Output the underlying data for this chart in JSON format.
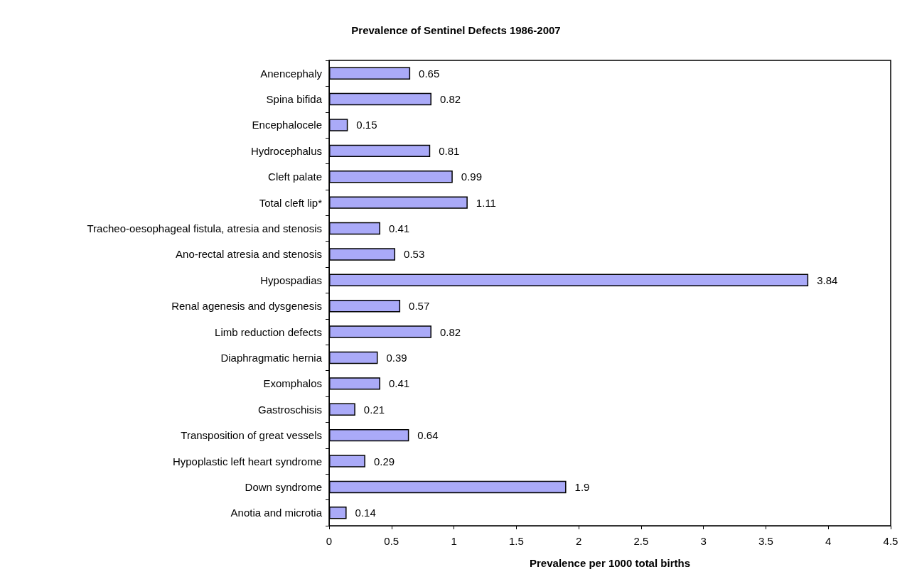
{
  "chart_data": {
    "type": "bar",
    "orientation": "horizontal",
    "title": "Prevalence of Sentinel Defects 1986-2007",
    "xlabel": "Prevalence per 1000 total births",
    "categories": [
      "Anencephaly",
      "Spina bifida",
      "Encephalocele",
      "Hydrocephalus",
      "Cleft palate",
      "Total cleft lip*",
      "Tracheo-oesophageal fistula, atresia and stenosis",
      "Ano-rectal atresia and stenosis",
      "Hypospadias",
      "Renal agenesis and dysgenesis",
      "Limb reduction defects",
      "Diaphragmatic hernia",
      "Exomphalos",
      "Gastroschisis",
      "Transposition of great vessels",
      "Hypoplastic left heart syndrome",
      "Down syndrome",
      "Anotia and microtia"
    ],
    "values": [
      0.65,
      0.82,
      0.15,
      0.81,
      0.99,
      1.11,
      0.41,
      0.53,
      3.84,
      0.57,
      0.82,
      0.39,
      0.41,
      0.21,
      0.64,
      0.29,
      1.9,
      0.14
    ],
    "color": "#aaaaf8",
    "data_labels": true,
    "xlim": [
      0,
      4.5
    ],
    "xticks": [
      0,
      0.5,
      1,
      1.5,
      2,
      2.5,
      3,
      3.5,
      4,
      4.5
    ],
    "grid": false
  }
}
